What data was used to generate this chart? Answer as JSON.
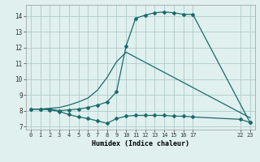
{
  "background_color": "#dff0ee",
  "grid_color": "#b0cccb",
  "line_color": "#1a6b6b",
  "xlabel": "Humidex (Indice chaleur)",
  "xlim": [
    -0.5,
    23.5
  ],
  "ylim": [
    6.8,
    14.7
  ],
  "xticks": [
    0,
    1,
    2,
    3,
    4,
    5,
    6,
    7,
    8,
    9,
    10,
    11,
    12,
    13,
    14,
    15,
    16,
    17,
    22,
    23
  ],
  "xtick_labels": [
    "0",
    "1",
    "2",
    "3",
    "4",
    "5",
    "6",
    "7",
    "8",
    "9",
    "10",
    "11",
    "12",
    "13",
    "14",
    "15",
    "16",
    "17",
    "22",
    "23"
  ],
  "yticks": [
    7,
    8,
    9,
    10,
    11,
    12,
    13,
    14
  ],
  "line1_x": [
    0,
    1,
    2,
    3,
    4,
    5,
    6,
    7,
    8,
    9,
    10,
    11,
    12,
    13,
    14,
    15,
    16,
    17,
    23
  ],
  "line1_y": [
    8.1,
    8.1,
    8.1,
    8.0,
    8.05,
    8.1,
    8.2,
    8.35,
    8.55,
    9.2,
    12.1,
    13.85,
    14.05,
    14.2,
    14.25,
    14.2,
    14.1,
    14.1,
    7.25
  ],
  "line2_x": [
    0,
    1,
    2,
    3,
    4,
    5,
    6,
    7,
    8,
    9,
    10,
    11,
    12,
    13,
    14,
    15,
    16,
    17,
    22,
    23
  ],
  "line2_y": [
    8.1,
    8.1,
    8.05,
    7.95,
    7.75,
    7.6,
    7.5,
    7.35,
    7.2,
    7.5,
    7.65,
    7.7,
    7.7,
    7.7,
    7.7,
    7.65,
    7.65,
    7.6,
    7.45,
    7.25
  ],
  "line3_x": [
    0,
    1,
    2,
    3,
    4,
    5,
    6,
    7,
    8,
    9,
    10,
    23
  ],
  "line3_y": [
    8.1,
    8.1,
    8.15,
    8.2,
    8.35,
    8.55,
    8.8,
    9.3,
    10.1,
    11.1,
    11.7,
    7.55
  ]
}
